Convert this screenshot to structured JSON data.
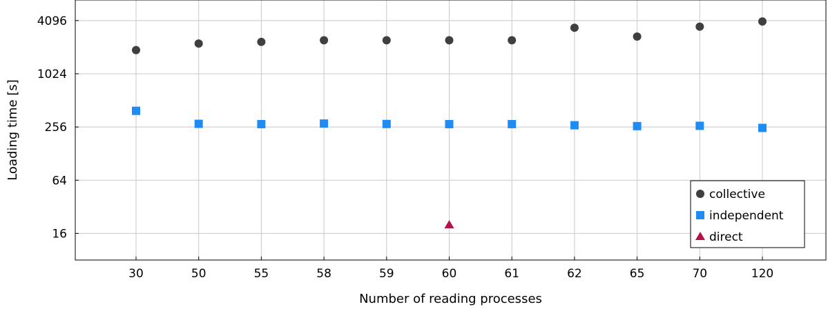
{
  "chart_data": {
    "type": "scatter",
    "title": "",
    "xlabel": "Number of reading processes",
    "ylabel": "Loading time [s]",
    "y_scale": "log2",
    "ylim": [
      8,
      7000
    ],
    "grid": true,
    "legend_position": "bottom-right",
    "categories": [
      "30",
      "50",
      "55",
      "58",
      "59",
      "60",
      "61",
      "62",
      "65",
      "70",
      "120"
    ],
    "y_ticks": [
      16,
      64,
      256,
      1024,
      4096
    ],
    "y_tick_labels": [
      "16",
      "64",
      "256",
      "1024",
      "4096"
    ],
    "series": [
      {
        "name": "collective",
        "marker": "circle",
        "color": "#3f3f3f",
        "points": [
          {
            "x": "30",
            "y": 1900
          },
          {
            "x": "50",
            "y": 2250
          },
          {
            "x": "55",
            "y": 2350
          },
          {
            "x": "58",
            "y": 2450
          },
          {
            "x": "59",
            "y": 2450
          },
          {
            "x": "60",
            "y": 2450
          },
          {
            "x": "61",
            "y": 2450
          },
          {
            "x": "62",
            "y": 3400
          },
          {
            "x": "65",
            "y": 2700
          },
          {
            "x": "70",
            "y": 3500
          },
          {
            "x": "120",
            "y": 4000
          }
        ]
      },
      {
        "name": "independent",
        "marker": "square",
        "color": "#1e8cf2",
        "points": [
          {
            "x": "30",
            "y": 390
          },
          {
            "x": "50",
            "y": 278
          },
          {
            "x": "55",
            "y": 276
          },
          {
            "x": "58",
            "y": 280
          },
          {
            "x": "59",
            "y": 277
          },
          {
            "x": "60",
            "y": 276
          },
          {
            "x": "61",
            "y": 276
          },
          {
            "x": "62",
            "y": 268
          },
          {
            "x": "65",
            "y": 262
          },
          {
            "x": "70",
            "y": 264
          },
          {
            "x": "120",
            "y": 250
          }
        ]
      },
      {
        "name": "direct",
        "marker": "triangle",
        "color": "#b5124b",
        "points": [
          {
            "x": "60",
            "y": 20
          }
        ]
      }
    ]
  }
}
